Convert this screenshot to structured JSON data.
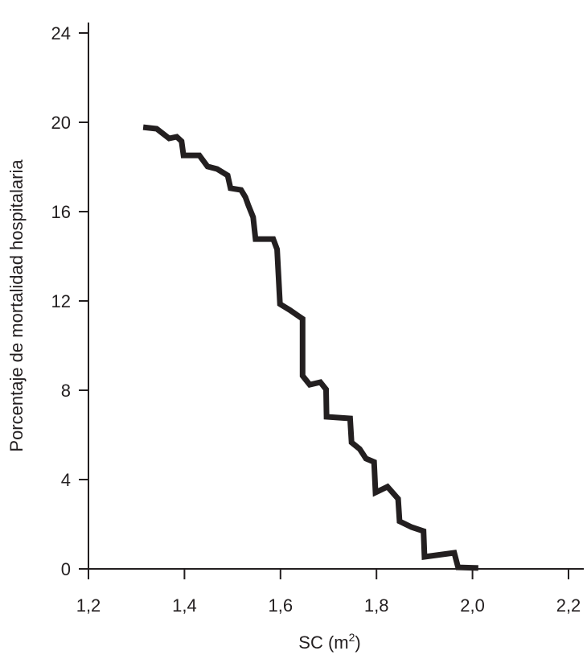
{
  "chart_data": {
    "type": "line",
    "title": "",
    "xlabel": "SC (m",
    "xlabel_sup": "2",
    "xlabel_close": ")",
    "ylabel": "Porcentaje de mortalidad hospitalaria",
    "xlim": [
      1.2,
      2.2
    ],
    "ylim": [
      0,
      24
    ],
    "x_ticks": [
      1.2,
      1.4,
      1.6,
      1.8,
      2.0,
      2.2
    ],
    "x_tick_labels": [
      "1,2",
      "1,4",
      "1,6",
      "1,8",
      "2,0",
      "2,2"
    ],
    "y_ticks": [
      0,
      4,
      8,
      12,
      16,
      20,
      24
    ],
    "y_tick_labels": [
      "0",
      "4",
      "8",
      "12",
      "16",
      "20",
      "24"
    ],
    "grid": false,
    "line_color": "#231f20",
    "series": [
      {
        "x": [
          1.314,
          1.342,
          1.368,
          1.384,
          1.394,
          1.398,
          1.431,
          1.448,
          1.468,
          1.49,
          1.496,
          1.518,
          1.527,
          1.533,
          1.543,
          1.548,
          1.585,
          1.593,
          1.599,
          1.619,
          1.639,
          1.646,
          1.646,
          1.661,
          1.683,
          1.695,
          1.696,
          1.745,
          1.748,
          1.765,
          1.778,
          1.795,
          1.798,
          1.823,
          1.845,
          1.848,
          1.873,
          1.898,
          1.9,
          1.962,
          1.97,
          2.012
        ],
        "y": [
          19.78,
          19.71,
          19.28,
          19.35,
          19.15,
          18.52,
          18.52,
          18.02,
          17.91,
          17.62,
          17.05,
          16.97,
          16.65,
          16.29,
          15.75,
          14.77,
          14.77,
          14.31,
          11.86,
          11.6,
          11.3,
          11.2,
          8.65,
          8.25,
          8.36,
          8.04,
          6.81,
          6.74,
          5.66,
          5.37,
          4.94,
          4.79,
          3.42,
          3.68,
          3.14,
          2.13,
          1.87,
          1.69,
          0.54,
          0.72,
          0.07,
          0.04
        ]
      }
    ]
  }
}
